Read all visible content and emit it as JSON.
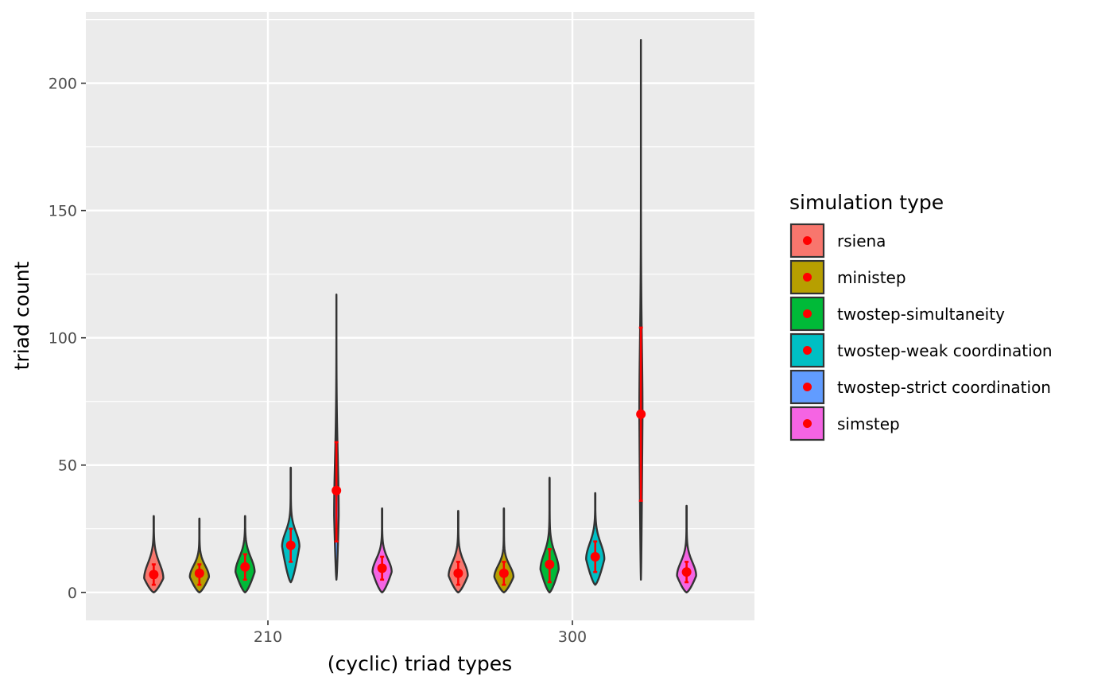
{
  "chart_data": {
    "type": "violin",
    "title": "",
    "xlabel": "(cyclic) triad types",
    "ylabel": "triad count",
    "categories": [
      "210",
      "300"
    ],
    "ylim": [
      -11,
      228
    ],
    "yticks": [
      0,
      50,
      100,
      150,
      200
    ],
    "grid": true,
    "legend": {
      "title": "simulation type",
      "position": "right"
    },
    "series": [
      {
        "name": "rsiena",
        "color": "#F8766D",
        "violins": [
          {
            "category": "210",
            "min": 0,
            "max": 30,
            "mode": 5.5,
            "halfwidth": 0.42,
            "tail": 16,
            "mean": 7,
            "lower": 3,
            "upper": 11
          },
          {
            "category": "300",
            "min": 0,
            "max": 32,
            "mode": 6.5,
            "halfwidth": 0.42,
            "tail": 16,
            "mean": 7.5,
            "lower": 3,
            "upper": 12
          }
        ]
      },
      {
        "name": "ministep",
        "color": "#B79F00",
        "violins": [
          {
            "category": "210",
            "min": 0,
            "max": 29,
            "mode": 6,
            "halfwidth": 0.42,
            "tail": 14,
            "mean": 7.5,
            "lower": 3,
            "upper": 11
          },
          {
            "category": "300",
            "min": 0,
            "max": 33,
            "mode": 6,
            "halfwidth": 0.42,
            "tail": 14,
            "mean": 7.5,
            "lower": 3,
            "upper": 12
          }
        ]
      },
      {
        "name": "twostep-simultaneity",
        "color": "#00BA38",
        "violins": [
          {
            "category": "210",
            "min": 0,
            "max": 30,
            "mode": 8,
            "halfwidth": 0.42,
            "tail": 18,
            "mean": 10,
            "lower": 5,
            "upper": 15
          },
          {
            "category": "300",
            "min": 0,
            "max": 45,
            "mode": 9,
            "halfwidth": 0.4,
            "tail": 20,
            "mean": 11,
            "lower": 4,
            "upper": 17
          }
        ]
      },
      {
        "name": "twostep-weak coordination",
        "color": "#00BFC4",
        "violins": [
          {
            "category": "210",
            "min": 4,
            "max": 49,
            "mode": 18,
            "halfwidth": 0.38,
            "tail": 28,
            "mean": 18.5,
            "lower": 12,
            "upper": 25
          },
          {
            "category": "300",
            "min": 3,
            "max": 39,
            "mode": 13,
            "halfwidth": 0.4,
            "tail": 24,
            "mean": 14,
            "lower": 8,
            "upper": 20
          }
        ]
      },
      {
        "name": "twostep-strict coordination",
        "color": "#619CFF",
        "violins": [
          {
            "category": "210",
            "min": 5,
            "max": 117,
            "mode": 30,
            "halfwidth": 0.1,
            "tail": 70,
            "mean": 40,
            "lower": 20,
            "upper": 59
          },
          {
            "category": "300",
            "min": 5,
            "max": 217,
            "mode": 70,
            "halfwidth": 0.07,
            "tail": 120,
            "mean": 70,
            "lower": 36,
            "upper": 104
          }
        ]
      },
      {
        "name": "simstep",
        "color": "#F564E3",
        "violins": [
          {
            "category": "210",
            "min": 0,
            "max": 33,
            "mode": 8,
            "halfwidth": 0.42,
            "tail": 17,
            "mean": 9.5,
            "lower": 5,
            "upper": 14
          },
          {
            "category": "300",
            "min": 0,
            "max": 34,
            "mode": 6.5,
            "halfwidth": 0.42,
            "tail": 16,
            "mean": 8,
            "lower": 4,
            "upper": 12
          }
        ]
      }
    ],
    "summary_point_color": "#FF0000",
    "panel_background": "#EBEBEB",
    "grid_color": "#FFFFFF",
    "outline_color": "#333333"
  }
}
